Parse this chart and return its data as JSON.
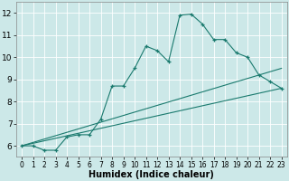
{
  "xlabel": "Humidex (Indice chaleur)",
  "bg_color": "#cce8e8",
  "grid_color": "#b0d4d4",
  "line_color": "#1a7a6e",
  "xlim": [
    -0.5,
    23.5
  ],
  "ylim": [
    5.5,
    12.5
  ],
  "xticks": [
    0,
    1,
    2,
    3,
    4,
    5,
    6,
    7,
    8,
    9,
    10,
    11,
    12,
    13,
    14,
    15,
    16,
    17,
    18,
    19,
    20,
    21,
    22,
    23
  ],
  "yticks": [
    6,
    7,
    8,
    9,
    10,
    11,
    12
  ],
  "curve_x": [
    0,
    1,
    2,
    3,
    4,
    5,
    6,
    7,
    8,
    9,
    10,
    11,
    12,
    13,
    14,
    15,
    16,
    17,
    18,
    19,
    20,
    21,
    22,
    23
  ],
  "curve_y": [
    6.0,
    6.0,
    5.8,
    5.8,
    6.4,
    6.5,
    6.5,
    7.2,
    8.7,
    8.7,
    9.5,
    10.5,
    10.3,
    9.8,
    11.9,
    11.95,
    11.5,
    10.8,
    10.8,
    10.2,
    10.0,
    9.2,
    8.9,
    8.6
  ],
  "line1_x": [
    0,
    23
  ],
  "line1_y": [
    6.0,
    8.6
  ],
  "line2_x": [
    0,
    23
  ],
  "line2_y": [
    6.0,
    9.5
  ],
  "xlabel_fontsize": 7,
  "tick_fontsize": 6
}
